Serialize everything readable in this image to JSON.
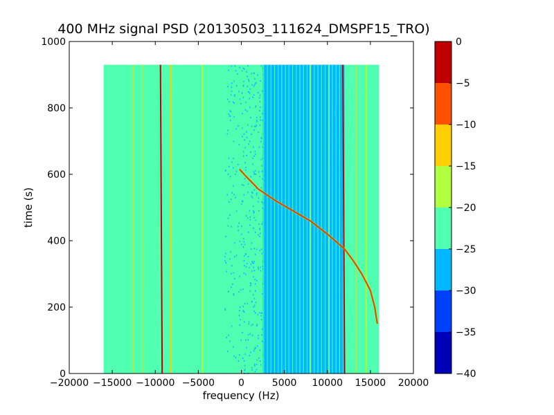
{
  "chart_data": {
    "type": "heatmap",
    "title": "400 MHz signal PSD (20130503_111624_DMSPF15_TRO)",
    "xlabel": "frequency (Hz)",
    "ylabel": "time (s)",
    "xlim": [
      -20000,
      20000
    ],
    "ylim": [
      0,
      1000
    ],
    "x_ticks": [
      -20000,
      -15000,
      -10000,
      -5000,
      0,
      5000,
      10000,
      15000,
      20000
    ],
    "x_tick_labels": [
      "−20000",
      "−15000",
      "−10000",
      "−5000",
      "0",
      "5000",
      "10000",
      "15000",
      "20000"
    ],
    "y_ticks": [
      0,
      200,
      400,
      600,
      800,
      1000
    ],
    "y_tick_labels": [
      "0",
      "200",
      "400",
      "600",
      "800",
      "1000"
    ],
    "data_extent": {
      "x": [
        -16000,
        16000
      ],
      "y": [
        0,
        930
      ]
    },
    "colorbar": {
      "range": [
        -40,
        0
      ],
      "levels": [
        -40,
        -35,
        -30,
        -25,
        -20,
        -15,
        -10,
        -5,
        0
      ],
      "tick_labels": [
        "−40",
        "−35",
        "−30",
        "−25",
        "−20",
        "−15",
        "−10",
        "−5",
        "0"
      ],
      "colors": [
        "#0000b8",
        "#0040ff",
        "#00b8ff",
        "#50ffb0",
        "#b0ff40",
        "#ffd000",
        "#ff5000",
        "#c00000"
      ]
    },
    "background_bands": [
      {
        "x": [
          -16000,
          -2000
        ],
        "level": -22.5
      },
      {
        "x": [
          -2000,
          2500
        ],
        "level": -25,
        "texture": "speckled"
      },
      {
        "x": [
          2500,
          12000
        ],
        "level": -27.5
      },
      {
        "x": [
          12000,
          16000
        ],
        "level": -22.5
      }
    ],
    "carrier_lines": [
      {
        "name": "vertical",
        "x": -9200,
        "x_top": -9400,
        "level": -5
      },
      {
        "name": "vertical",
        "x": 12000,
        "x_top": 11800,
        "level": -5
      },
      {
        "name": "vertical",
        "x": -12500,
        "level": -12.5
      },
      {
        "name": "vertical",
        "x": -11500,
        "level": -15
      },
      {
        "name": "vertical",
        "x": -8200,
        "level": -15
      },
      {
        "name": "vertical",
        "x": 13300,
        "level": -12.5
      },
      {
        "name": "vertical",
        "x": 14500,
        "level": -17.5
      },
      {
        "name": "vertical",
        "x": -4500,
        "level": -17.5
      },
      {
        "name": "vertical",
        "x": 8000,
        "level": -20
      },
      {
        "name": "vertical",
        "x": 10200,
        "level": -20
      }
    ],
    "doppler_curve": {
      "level": -5,
      "points": [
        [
          -200,
          615
        ],
        [
          500,
          595
        ],
        [
          2000,
          555
        ],
        [
          4000,
          520
        ],
        [
          6000,
          490
        ],
        [
          8000,
          460
        ],
        [
          10000,
          420
        ],
        [
          12000,
          375
        ],
        [
          13000,
          340
        ],
        [
          14000,
          300
        ],
        [
          15000,
          250
        ],
        [
          15500,
          200
        ],
        [
          15800,
          150
        ]
      ]
    }
  }
}
